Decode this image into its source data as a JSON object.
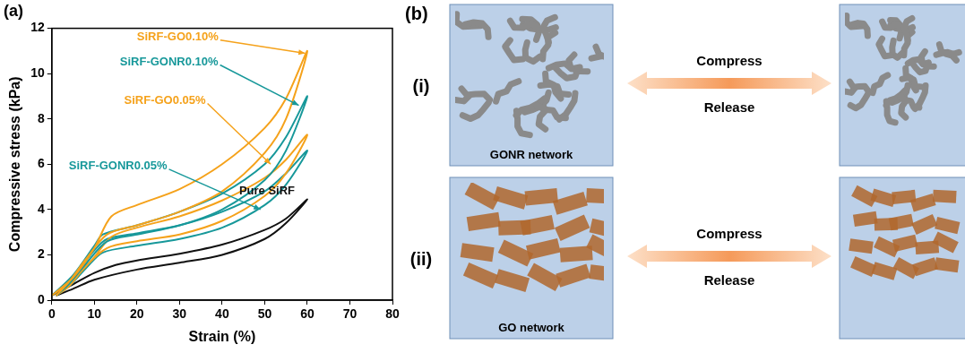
{
  "chart_data": {
    "type": "line",
    "title": "(a)",
    "x_label": "Strain (%)",
    "y_label": "Compressive stress (kPa)",
    "xlim": [
      0,
      80
    ],
    "xticks": [
      0,
      10,
      20,
      30,
      40,
      50,
      60,
      70,
      80
    ],
    "ylim": [
      0,
      12
    ],
    "yticks": [
      0,
      2,
      4,
      6,
      8,
      10,
      12
    ],
    "grid": false,
    "series": [
      {
        "name": "SiRF-GO0.10%",
        "color": "#f5a21b",
        "x": [
          0,
          5,
          10,
          14,
          20,
          30,
          40,
          50,
          55,
          60,
          55,
          50,
          40,
          30,
          20,
          13,
          8,
          4,
          1
        ],
        "values": [
          0.2,
          1.0,
          2.3,
          3.7,
          4.2,
          4.9,
          6.0,
          7.6,
          8.9,
          11.0,
          8.0,
          6.5,
          4.8,
          3.9,
          3.3,
          2.9,
          1.8,
          0.8,
          0.2
        ],
        "label_xy": [
          20,
          11.6
        ],
        "arrow_to": [
          59.5,
          10.9
        ]
      },
      {
        "name": "SiRF-GONR0.10%",
        "color": "#17989a",
        "x": [
          0,
          5,
          10,
          12,
          20,
          30,
          40,
          50,
          55,
          60,
          55,
          50,
          40,
          30,
          20,
          13,
          8,
          4,
          1
        ],
        "values": [
          0.2,
          1.1,
          2.4,
          2.9,
          3.3,
          3.9,
          4.7,
          6.0,
          7.2,
          9.0,
          6.6,
          5.3,
          4.0,
          3.3,
          2.9,
          2.6,
          1.6,
          0.7,
          0.2
        ],
        "label_xy": [
          16,
          10.5
        ],
        "arrow_to": [
          58,
          8.6
        ]
      },
      {
        "name": "SiRF-GO0.05%",
        "color": "#f5a21b",
        "x": [
          0,
          5,
          10,
          14,
          20,
          30,
          40,
          50,
          55,
          60,
          55,
          50,
          40,
          30,
          20,
          13,
          8,
          4,
          1
        ],
        "values": [
          0.2,
          0.9,
          1.9,
          2.8,
          3.2,
          3.7,
          4.4,
          5.4,
          6.2,
          7.3,
          5.6,
          4.6,
          3.5,
          2.9,
          2.6,
          2.3,
          1.5,
          0.6,
          0.2
        ],
        "label_xy": [
          17,
          8.8
        ],
        "arrow_to": [
          51.4,
          6.0
        ]
      },
      {
        "name": "SiRF-GONR0.05%",
        "color": "#17989a",
        "x": [
          0,
          5,
          10,
          13,
          20,
          30,
          40,
          50,
          55,
          60,
          55,
          50,
          40,
          30,
          20,
          12,
          8,
          4,
          1
        ],
        "values": [
          0.2,
          1.0,
          2.2,
          2.7,
          2.95,
          3.3,
          3.9,
          4.8,
          5.6,
          6.6,
          5.1,
          4.2,
          3.2,
          2.7,
          2.4,
          2.1,
          1.4,
          0.6,
          0.2
        ],
        "label_xy": [
          4,
          5.9
        ],
        "arrow_to": [
          49,
          4.0
        ]
      },
      {
        "name": "Pure SiRF",
        "color": "#111111",
        "x": [
          0,
          5,
          10,
          15,
          20,
          30,
          40,
          50,
          55,
          60,
          55,
          50,
          40,
          30,
          20,
          10,
          5,
          1
        ],
        "values": [
          0.2,
          0.7,
          1.2,
          1.55,
          1.75,
          2.05,
          2.45,
          3.1,
          3.6,
          4.45,
          3.4,
          2.7,
          2.0,
          1.65,
          1.35,
          0.9,
          0.5,
          0.2
        ],
        "label_xy": [
          44,
          4.8
        ]
      }
    ]
  },
  "diagram": {
    "panel_label": "(b)",
    "compress": "Compress",
    "release": "Release",
    "rows": [
      {
        "label": "(i)",
        "network": "GONR network",
        "type": "ribbons",
        "color": "#8a8a8a"
      },
      {
        "label": "(ii)",
        "network": "GO network",
        "type": "sheets",
        "color": "#b0672d"
      }
    ]
  }
}
